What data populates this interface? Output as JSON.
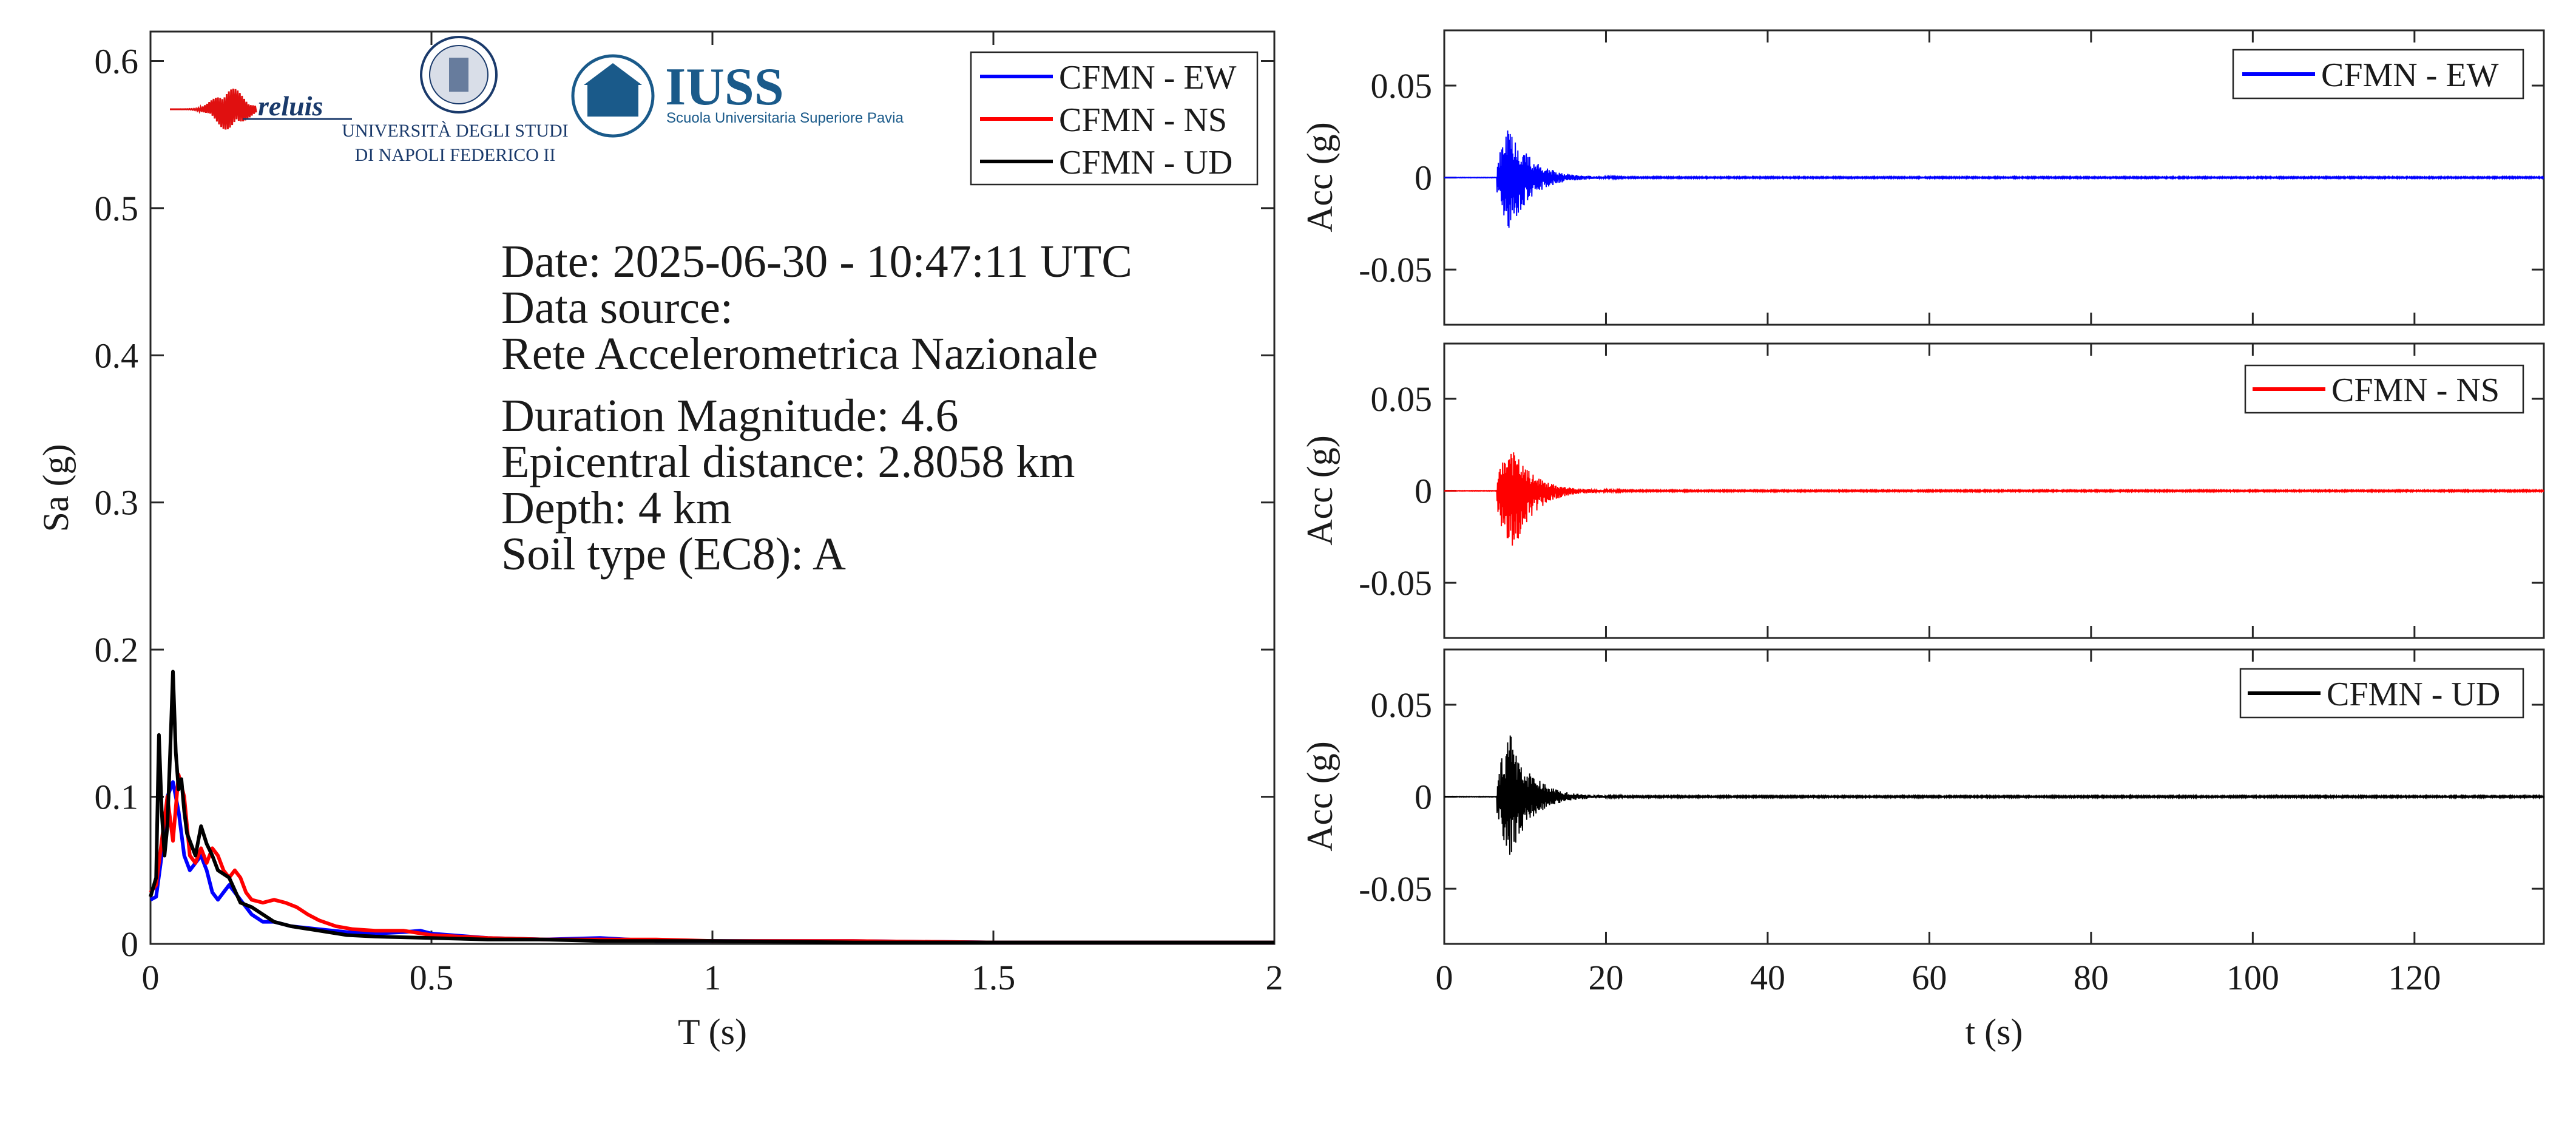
{
  "colors": {
    "EW": "#0000ff",
    "NS": "#ff0000",
    "UD": "#000000"
  },
  "logos": {
    "reluis": "reluis",
    "unina_line1": "UNIVERSITÀ DEGLI STUDI",
    "unina_line2": "DI NAPOLI FEDERICO II",
    "iuss_title": "IUSS",
    "iuss_subtitle": "Scuola Universitaria Superiore Pavia"
  },
  "info": {
    "date": "Date: 2025-06-30 - 10:47:11 UTC",
    "source_label": "Data source:",
    "source": "Rete Accelerometrica Nazionale",
    "magnitude": "Duration Magnitude: 4.6",
    "distance": "Epicentral distance: 2.8058 km",
    "depth": "Depth: 4 km",
    "soil": "Soil type (EC8): A"
  },
  "chart_data": [
    {
      "type": "line",
      "title": "",
      "xlabel": "T (s)",
      "ylabel": "Sa (g)",
      "xlim": [
        0,
        2
      ],
      "ylim": [
        0,
        0.62
      ],
      "xticks": [
        0,
        0.5,
        1,
        1.5,
        2
      ],
      "xtick_labels": [
        "0",
        "0.5",
        "1",
        "1.5",
        "2"
      ],
      "yticks": [
        0,
        0.1,
        0.2,
        0.3,
        0.4,
        0.5,
        0.6
      ],
      "ytick_labels": [
        "0",
        "0.1",
        "0.2",
        "0.3",
        "0.4",
        "0.5",
        "0.6"
      ],
      "grid": false,
      "legend_position": "top-right",
      "series": [
        {
          "name": "CFMN - EW",
          "color_key": "EW",
          "x": [
            0,
            0.01,
            0.02,
            0.03,
            0.04,
            0.05,
            0.06,
            0.07,
            0.08,
            0.09,
            0.1,
            0.11,
            0.12,
            0.14,
            0.16,
            0.18,
            0.2,
            0.22,
            0.25,
            0.3,
            0.35,
            0.4,
            0.45,
            0.48,
            0.5,
            0.6,
            0.7,
            0.8,
            0.9,
            1.0,
            1.25,
            1.5,
            1.75,
            2.0
          ],
          "y": [
            0.03,
            0.032,
            0.06,
            0.1,
            0.11,
            0.09,
            0.06,
            0.05,
            0.055,
            0.06,
            0.05,
            0.035,
            0.03,
            0.04,
            0.03,
            0.02,
            0.015,
            0.015,
            0.012,
            0.01,
            0.008,
            0.007,
            0.008,
            0.009,
            0.007,
            0.004,
            0.003,
            0.004,
            0.002,
            0.002,
            0.002,
            0.001,
            0.001,
            0.001
          ]
        },
        {
          "name": "CFMN - NS",
          "color_key": "NS",
          "x": [
            0,
            0.01,
            0.02,
            0.03,
            0.04,
            0.05,
            0.06,
            0.07,
            0.08,
            0.09,
            0.1,
            0.11,
            0.12,
            0.13,
            0.14,
            0.15,
            0.16,
            0.17,
            0.18,
            0.2,
            0.22,
            0.24,
            0.26,
            0.28,
            0.3,
            0.33,
            0.36,
            0.4,
            0.45,
            0.5,
            0.6,
            0.7,
            0.8,
            0.9,
            1.0,
            1.25,
            1.5,
            1.75,
            2.0
          ],
          "y": [
            0.035,
            0.04,
            0.07,
            0.1,
            0.07,
            0.115,
            0.1,
            0.06,
            0.055,
            0.065,
            0.055,
            0.065,
            0.06,
            0.05,
            0.045,
            0.05,
            0.045,
            0.035,
            0.03,
            0.028,
            0.03,
            0.028,
            0.025,
            0.02,
            0.016,
            0.012,
            0.01,
            0.009,
            0.009,
            0.006,
            0.004,
            0.003,
            0.003,
            0.003,
            0.002,
            0.002,
            0.001,
            0.001,
            0.001
          ]
        },
        {
          "name": "CFMN - UD",
          "color_key": "UD",
          "x": [
            0,
            0.01,
            0.015,
            0.02,
            0.025,
            0.03,
            0.035,
            0.04,
            0.045,
            0.05,
            0.055,
            0.06,
            0.065,
            0.07,
            0.08,
            0.09,
            0.1,
            0.11,
            0.12,
            0.14,
            0.16,
            0.18,
            0.2,
            0.22,
            0.25,
            0.3,
            0.35,
            0.4,
            0.5,
            0.6,
            0.7,
            0.8,
            0.9,
            1.0,
            1.25,
            1.5,
            1.75,
            2.0
          ],
          "y": [
            0.032,
            0.045,
            0.142,
            0.09,
            0.06,
            0.08,
            0.13,
            0.185,
            0.13,
            0.105,
            0.112,
            0.09,
            0.075,
            0.07,
            0.06,
            0.08,
            0.068,
            0.06,
            0.05,
            0.045,
            0.028,
            0.025,
            0.02,
            0.015,
            0.012,
            0.009,
            0.006,
            0.005,
            0.004,
            0.003,
            0.003,
            0.002,
            0.002,
            0.002,
            0.001,
            0.001,
            0.001,
            0.001
          ]
        }
      ]
    },
    {
      "type": "line",
      "title": "",
      "xlabel": "",
      "ylabel": "Acc (g)",
      "xlim": [
        0,
        136
      ],
      "ylim": [
        -0.08,
        0.08
      ],
      "yticks": [
        -0.05,
        0,
        0.05
      ],
      "ytick_labels": [
        "-0.05",
        "0",
        "0.05"
      ],
      "grid": false,
      "legend_position": "top-right",
      "series": [
        {
          "name": "CFMN - EW",
          "color_key": "EW",
          "pga": 0.03,
          "pgv_min": -0.031,
          "peak_time": 8.0,
          "onset": 6.5,
          "decay_end": 22
        }
      ]
    },
    {
      "type": "line",
      "title": "",
      "xlabel": "",
      "ylabel": "Acc (g)",
      "xlim": [
        0,
        136
      ],
      "ylim": [
        -0.08,
        0.08
      ],
      "yticks": [
        -0.05,
        0,
        0.05
      ],
      "ytick_labels": [
        "-0.05",
        "0",
        "0.05"
      ],
      "grid": false,
      "legend_position": "top-right",
      "series": [
        {
          "name": "CFMN - NS",
          "color_key": "NS",
          "pga": 0.026,
          "pgv_min": -0.037,
          "peak_time": 8.2,
          "onset": 6.5,
          "decay_end": 22
        }
      ]
    },
    {
      "type": "line",
      "title": "",
      "xlabel": "t (s)",
      "ylabel": "Acc (g)",
      "xlim": [
        0,
        136
      ],
      "ylim": [
        -0.08,
        0.08
      ],
      "xticks": [
        0,
        20,
        40,
        60,
        80,
        100,
        120
      ],
      "xtick_labels": [
        "0",
        "20",
        "40",
        "60",
        "80",
        "100",
        "120"
      ],
      "yticks": [
        -0.05,
        0,
        0.05
      ],
      "ytick_labels": [
        "-0.05",
        "0",
        "0.05"
      ],
      "grid": false,
      "legend_position": "top-right",
      "series": [
        {
          "name": "CFMN - UD",
          "color_key": "UD",
          "pga": 0.036,
          "pgv_min": -0.035,
          "peak_time": 8.0,
          "onset": 6.5,
          "decay_end": 22
        }
      ]
    }
  ]
}
